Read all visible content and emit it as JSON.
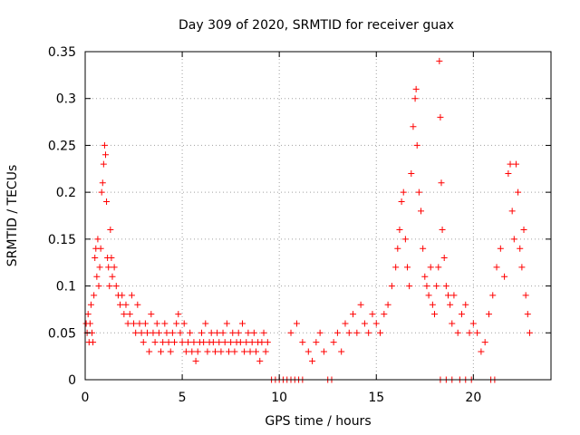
{
  "chart_data": {
    "type": "scatter",
    "title": "Day 309 of 2020, SRMTID for receiver guax",
    "xlabel": "GPS time / hours",
    "ylabel": "SRMTID / TECUs",
    "xlim": [
      0,
      24
    ],
    "ylim": [
      0,
      0.35
    ],
    "x_ticks": [
      0,
      5,
      10,
      15,
      20
    ],
    "x_tick_labels": [
      "0",
      "5",
      "10",
      "15",
      "20"
    ],
    "y_ticks": [
      0,
      0.05,
      0.1,
      0.15,
      0.2,
      0.25,
      0.3,
      0.35
    ],
    "y_tick_labels": [
      "0",
      "0.05",
      "0.1",
      "0.15",
      "0.2",
      "0.25",
      "0.3",
      "0.35"
    ],
    "grid": true,
    "marker": "+",
    "color": "#ff0000",
    "series": [
      {
        "name": "SRMTID",
        "points": [
          [
            0.05,
            0.06
          ],
          [
            0.1,
            0.05
          ],
          [
            0.15,
            0.07
          ],
          [
            0.2,
            0.04
          ],
          [
            0.25,
            0.06
          ],
          [
            0.3,
            0.08
          ],
          [
            0.35,
            0.05
          ],
          [
            0.4,
            0.04
          ],
          [
            0.45,
            0.09
          ],
          [
            0.5,
            0.13
          ],
          [
            0.55,
            0.14
          ],
          [
            0.6,
            0.11
          ],
          [
            0.65,
            0.15
          ],
          [
            0.7,
            0.1
          ],
          [
            0.75,
            0.12
          ],
          [
            0.8,
            0.14
          ],
          [
            0.85,
            0.2
          ],
          [
            0.9,
            0.21
          ],
          [
            0.95,
            0.23
          ],
          [
            1.0,
            0.25
          ],
          [
            1.05,
            0.24
          ],
          [
            1.1,
            0.19
          ],
          [
            1.15,
            0.13
          ],
          [
            1.2,
            0.12
          ],
          [
            1.25,
            0.1
          ],
          [
            1.3,
            0.16
          ],
          [
            1.35,
            0.13
          ],
          [
            1.4,
            0.11
          ],
          [
            1.5,
            0.12
          ],
          [
            1.6,
            0.1
          ],
          [
            1.7,
            0.09
          ],
          [
            1.8,
            0.08
          ],
          [
            1.9,
            0.09
          ],
          [
            2.0,
            0.07
          ],
          [
            2.1,
            0.08
          ],
          [
            2.2,
            0.06
          ],
          [
            2.3,
            0.07
          ],
          [
            2.4,
            0.09
          ],
          [
            2.5,
            0.06
          ],
          [
            2.6,
            0.05
          ],
          [
            2.7,
            0.08
          ],
          [
            2.8,
            0.06
          ],
          [
            2.9,
            0.05
          ],
          [
            3.0,
            0.04
          ],
          [
            3.1,
            0.06
          ],
          [
            3.2,
            0.05
          ],
          [
            3.3,
            0.03
          ],
          [
            3.4,
            0.07
          ],
          [
            3.5,
            0.05
          ],
          [
            3.6,
            0.04
          ],
          [
            3.7,
            0.06
          ],
          [
            3.8,
            0.05
          ],
          [
            3.9,
            0.03
          ],
          [
            4.0,
            0.04
          ],
          [
            4.1,
            0.06
          ],
          [
            4.2,
            0.05
          ],
          [
            4.3,
            0.04
          ],
          [
            4.4,
            0.03
          ],
          [
            4.5,
            0.05
          ],
          [
            4.6,
            0.04
          ],
          [
            4.7,
            0.06
          ],
          [
            4.8,
            0.07
          ],
          [
            4.9,
            0.05
          ],
          [
            5.0,
            0.04
          ],
          [
            5.1,
            0.06
          ],
          [
            5.2,
            0.03
          ],
          [
            5.3,
            0.04
          ],
          [
            5.4,
            0.05
          ],
          [
            5.5,
            0.03
          ],
          [
            5.6,
            0.04
          ],
          [
            5.7,
            0.02
          ],
          [
            5.8,
            0.03
          ],
          [
            5.9,
            0.04
          ],
          [
            6.0,
            0.05
          ],
          [
            6.1,
            0.04
          ],
          [
            6.2,
            0.06
          ],
          [
            6.3,
            0.03
          ],
          [
            6.4,
            0.04
          ],
          [
            6.5,
            0.05
          ],
          [
            6.6,
            0.04
          ],
          [
            6.7,
            0.03
          ],
          [
            6.8,
            0.05
          ],
          [
            6.9,
            0.04
          ],
          [
            7.0,
            0.03
          ],
          [
            7.1,
            0.05
          ],
          [
            7.2,
            0.04
          ],
          [
            7.3,
            0.06
          ],
          [
            7.4,
            0.03
          ],
          [
            7.5,
            0.04
          ],
          [
            7.6,
            0.05
          ],
          [
            7.7,
            0.03
          ],
          [
            7.8,
            0.04
          ],
          [
            7.9,
            0.05
          ],
          [
            8.0,
            0.04
          ],
          [
            8.1,
            0.06
          ],
          [
            8.2,
            0.03
          ],
          [
            8.3,
            0.04
          ],
          [
            8.4,
            0.05
          ],
          [
            8.5,
            0.03
          ],
          [
            8.6,
            0.04
          ],
          [
            8.7,
            0.05
          ],
          [
            8.8,
            0.03
          ],
          [
            8.9,
            0.04
          ],
          [
            9.0,
            0.02
          ],
          [
            9.1,
            0.04
          ],
          [
            9.2,
            0.05
          ],
          [
            9.3,
            0.03
          ],
          [
            9.4,
            0.04
          ],
          [
            9.6,
            0.0
          ],
          [
            9.8,
            0.0
          ],
          [
            10.0,
            0.0
          ],
          [
            10.2,
            0.0
          ],
          [
            10.4,
            0.0
          ],
          [
            10.6,
            0.0
          ],
          [
            10.8,
            0.0
          ],
          [
            11.0,
            0.0
          ],
          [
            11.2,
            0.0
          ],
          [
            10.6,
            0.05
          ],
          [
            10.9,
            0.06
          ],
          [
            11.2,
            0.04
          ],
          [
            11.5,
            0.03
          ],
          [
            11.7,
            0.02
          ],
          [
            11.9,
            0.04
          ],
          [
            12.1,
            0.05
          ],
          [
            12.3,
            0.03
          ],
          [
            12.5,
            0.0
          ],
          [
            12.7,
            0.0
          ],
          [
            12.8,
            0.04
          ],
          [
            13.0,
            0.05
          ],
          [
            13.2,
            0.03
          ],
          [
            13.4,
            0.06
          ],
          [
            13.6,
            0.05
          ],
          [
            13.8,
            0.07
          ],
          [
            14.0,
            0.05
          ],
          [
            14.2,
            0.08
          ],
          [
            14.4,
            0.06
          ],
          [
            14.6,
            0.05
          ],
          [
            14.8,
            0.07
          ],
          [
            15.0,
            0.06
          ],
          [
            15.2,
            0.05
          ],
          [
            15.4,
            0.07
          ],
          [
            15.6,
            0.08
          ],
          [
            15.8,
            0.1
          ],
          [
            16.0,
            0.12
          ],
          [
            16.1,
            0.14
          ],
          [
            16.2,
            0.16
          ],
          [
            16.3,
            0.19
          ],
          [
            16.4,
            0.2
          ],
          [
            16.5,
            0.15
          ],
          [
            16.6,
            0.12
          ],
          [
            16.7,
            0.1
          ],
          [
            16.8,
            0.22
          ],
          [
            16.9,
            0.27
          ],
          [
            17.0,
            0.3
          ],
          [
            17.05,
            0.31
          ],
          [
            17.1,
            0.25
          ],
          [
            17.2,
            0.2
          ],
          [
            17.3,
            0.18
          ],
          [
            17.4,
            0.14
          ],
          [
            17.5,
            0.11
          ],
          [
            17.6,
            0.1
          ],
          [
            17.7,
            0.09
          ],
          [
            17.8,
            0.12
          ],
          [
            17.9,
            0.08
          ],
          [
            18.0,
            0.07
          ],
          [
            18.1,
            0.1
          ],
          [
            18.2,
            0.12
          ],
          [
            18.25,
            0.34
          ],
          [
            18.3,
            0.28
          ],
          [
            18.35,
            0.21
          ],
          [
            18.4,
            0.16
          ],
          [
            18.5,
            0.13
          ],
          [
            18.6,
            0.1
          ],
          [
            18.7,
            0.09
          ],
          [
            18.8,
            0.08
          ],
          [
            18.9,
            0.06
          ],
          [
            19.0,
            0.09
          ],
          [
            19.2,
            0.05
          ],
          [
            19.4,
            0.07
          ],
          [
            19.6,
            0.08
          ],
          [
            19.8,
            0.05
          ],
          [
            20.0,
            0.06
          ],
          [
            20.2,
            0.05
          ],
          [
            20.4,
            0.03
          ],
          [
            20.6,
            0.04
          ],
          [
            20.8,
            0.07
          ],
          [
            21.0,
            0.09
          ],
          [
            21.2,
            0.12
          ],
          [
            21.4,
            0.14
          ],
          [
            21.6,
            0.11
          ],
          [
            21.8,
            0.22
          ],
          [
            21.9,
            0.23
          ],
          [
            22.0,
            0.18
          ],
          [
            22.1,
            0.15
          ],
          [
            22.2,
            0.23
          ],
          [
            22.3,
            0.2
          ],
          [
            22.4,
            0.14
          ],
          [
            22.5,
            0.12
          ],
          [
            22.6,
            0.16
          ],
          [
            22.7,
            0.09
          ],
          [
            22.8,
            0.07
          ],
          [
            22.9,
            0.05
          ],
          [
            18.3,
            0.0
          ],
          [
            18.6,
            0.0
          ],
          [
            18.9,
            0.0
          ],
          [
            19.3,
            0.0
          ],
          [
            19.6,
            0.0
          ],
          [
            19.9,
            0.0
          ],
          [
            20.9,
            0.0
          ],
          [
            21.1,
            0.0
          ]
        ]
      }
    ]
  }
}
